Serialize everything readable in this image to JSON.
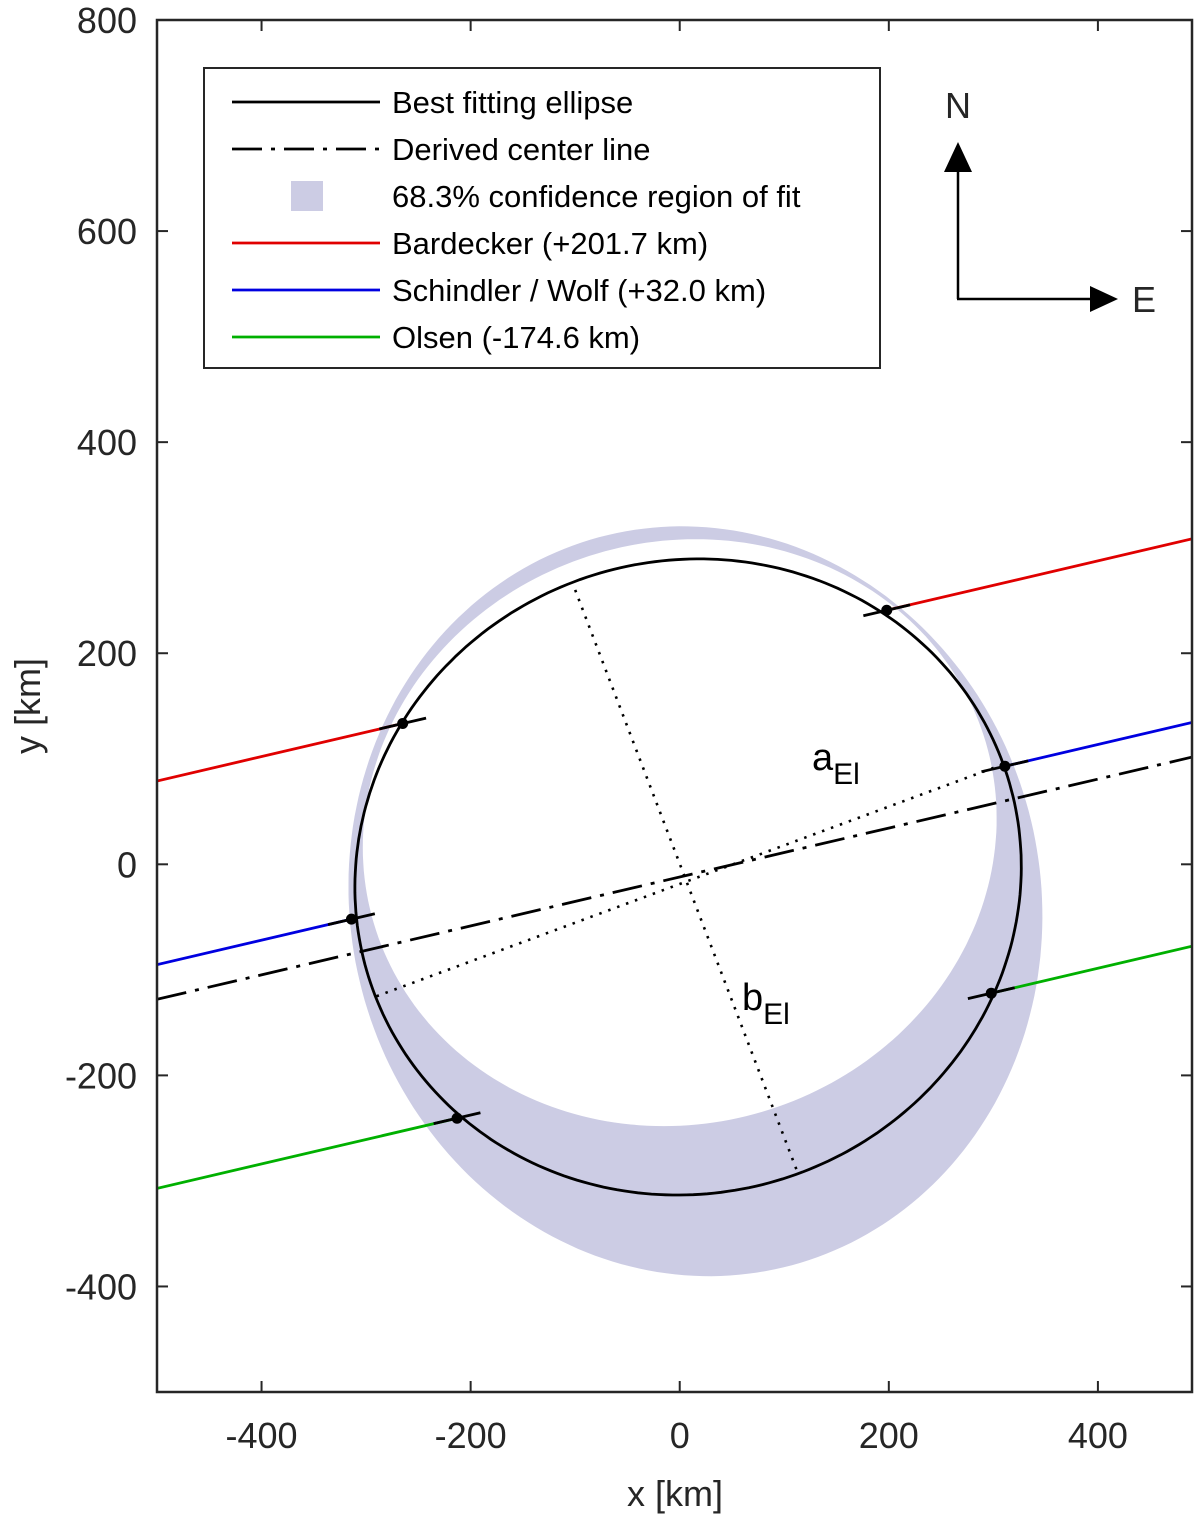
{
  "chart_data": {
    "type": "line",
    "xlabel": "x [km]",
    "ylabel": "y [km]",
    "xlim": [
      -500,
      490
    ],
    "ylim": [
      -500,
      800
    ],
    "xticks": [
      -400,
      -200,
      0,
      200,
      400
    ],
    "yticks": [
      800,
      600,
      400,
      200,
      0,
      -200,
      -400
    ],
    "xtick_labels": [
      "-400",
      "-200",
      "0",
      "200",
      "400"
    ],
    "ytick_labels": [
      "800",
      "600",
      "400",
      "200",
      "0",
      "-200",
      "-400"
    ],
    "grid": false,
    "legend_position": "top-left",
    "colors": {
      "ellipse": "#000000",
      "center_line": "#000000",
      "confidence": "#ccccE4",
      "bardecker": "#e00000",
      "schindler_wolf": "#0000e0",
      "olsen": "#00b000"
    },
    "ellipse": {
      "center": [
        8,
        -12
      ],
      "a": 320,
      "b": 300,
      "angle_deg": 15
    },
    "confidence_region": {
      "outer": {
        "center": [
          15,
          -35
        ],
        "a": 330,
        "b": 357,
        "angle_deg": 15
      },
      "inner": {
        "center": [
          0,
          30
        ],
        "a": 305,
        "b": 276,
        "angle_deg": 15
      }
    },
    "center_line": {
      "slope": 0.2318,
      "intercept": -12
    },
    "chords": [
      {
        "name": "Bardecker (+201.7 km)",
        "color_key": "bardecker",
        "slope": 0.2318,
        "intercept": 194.8,
        "disappearance_x": -265,
        "reappearance_x": 198
      },
      {
        "name": "Schindler / Wolf (+32.0 km)",
        "color_key": "schindler_wolf",
        "slope": 0.2318,
        "intercept": 20.8,
        "disappearance_x": -314,
        "reappearance_x": 311
      },
      {
        "name": "Olsen (-174.6 km)",
        "color_key": "olsen",
        "slope": 0.2318,
        "intercept": -191.2,
        "disappearance_x": -213,
        "reappearance_x": 298
      }
    ],
    "axis_lines": {
      "a_El": [
        [
          -290,
          -125
        ],
        [
          310,
          95
        ]
      ],
      "b_El": [
        [
          -100,
          260
        ],
        [
          112,
          -290
        ]
      ]
    },
    "annotations": {
      "a_main": "a",
      "a_sub": "El",
      "b_main": "b",
      "b_sub": "El"
    },
    "compass": {
      "north": "N",
      "east": "E"
    }
  },
  "legend": {
    "items": [
      {
        "label": "Best fitting ellipse",
        "style": "solid",
        "color_key": "ellipse"
      },
      {
        "label": "Derived center line",
        "style": "dashdot",
        "color_key": "center_line"
      },
      {
        "label": "68.3% confidence region of fit",
        "style": "patch",
        "color_key": "confidence"
      },
      {
        "label": "Bardecker (+201.7 km)",
        "style": "solid",
        "color_key": "bardecker"
      },
      {
        "label": "Schindler / Wolf (+32.0 km)",
        "style": "solid",
        "color_key": "schindler_wolf"
      },
      {
        "label": "Olsen (-174.6 km)",
        "style": "solid",
        "color_key": "olsen"
      }
    ]
  }
}
